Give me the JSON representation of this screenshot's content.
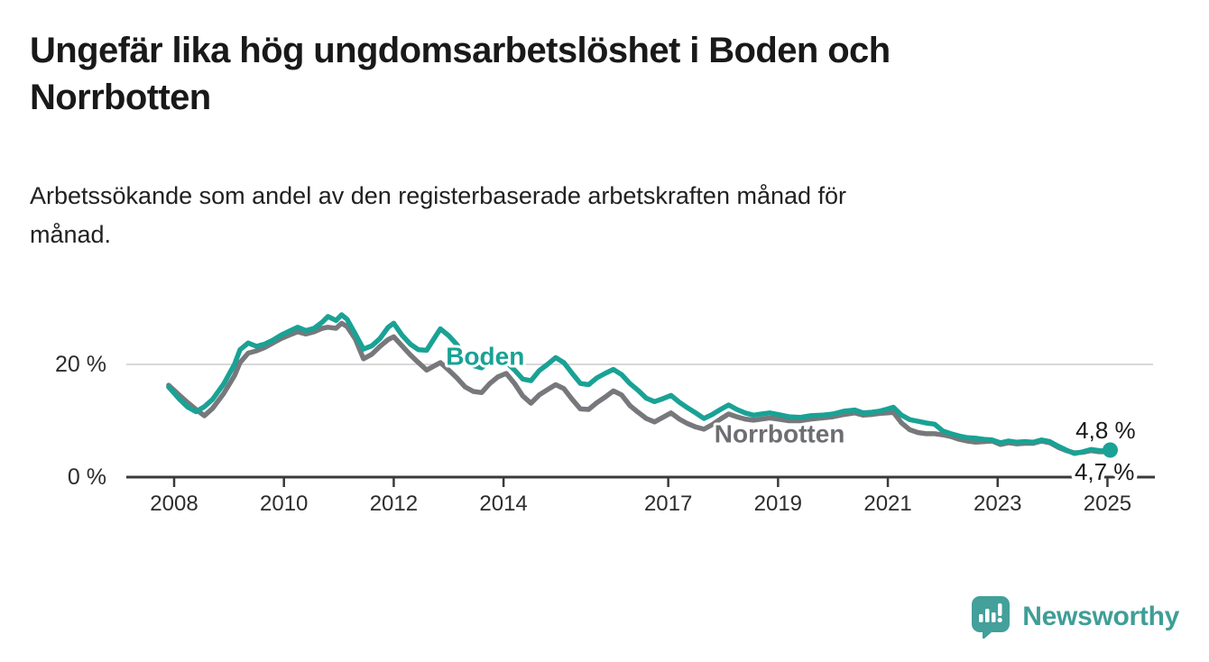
{
  "header": {
    "title": "Ungefär lika hög ungdomsarbetslöshet i Boden och\nNorrbotten",
    "subtitle": "Arbetssökande som andel av den registerbaserade arbetskraften månad för\nmånad."
  },
  "footer": {
    "brand": "Newsworthy"
  },
  "colors": {
    "accent_teal": "#19a295",
    "line_gray": "#77787b",
    "label_gray": "#6d6e71",
    "axis": "#3a3a3a",
    "grid": "#d8d8d8",
    "tick_text": "#2d2d2d",
    "value_text": "#1a1a1a",
    "logo_teal": "#43a09a"
  },
  "chart_data": {
    "type": "line",
    "title": "Ungefär lika hög ungdomsarbetslöshet i Boden och Norrbotten",
    "subtitle": "Arbetssökande som andel av den registerbaserade arbetskraften månad för månad.",
    "unit": "%",
    "grid": "y-only",
    "legend_position": "inline-labels",
    "x_axis": {
      "range": [
        2007.85,
        2025.45
      ],
      "ticks": [
        {
          "x": 2008,
          "label": "2008"
        },
        {
          "x": 2010,
          "label": "2010"
        },
        {
          "x": 2012,
          "label": "2012"
        },
        {
          "x": 2014,
          "label": "2014"
        },
        {
          "x": 2017,
          "label": "2017"
        },
        {
          "x": 2019,
          "label": "2019"
        },
        {
          "x": 2021,
          "label": "2021"
        },
        {
          "x": 2023,
          "label": "2023"
        },
        {
          "x": 2025,
          "label": "2025"
        }
      ]
    },
    "y_axis": {
      "range": [
        0,
        30
      ],
      "ticks": [
        {
          "y": 20,
          "label": "20 %"
        },
        {
          "y": 0,
          "label": "0 %"
        }
      ]
    },
    "series": [
      {
        "name": "Norrbotten",
        "color": "#77787b",
        "label": {
          "text": "Norrbotten",
          "x": 2017.84,
          "y": 6.2,
          "color": "#6d6e71"
        },
        "end_value": 4.7,
        "end_dot": false,
        "points": [
          [
            2007.9,
            16.3
          ],
          [
            2008.1,
            14.5
          ],
          [
            2008.25,
            13.2
          ],
          [
            2008.4,
            12.0
          ],
          [
            2008.55,
            10.9
          ],
          [
            2008.7,
            12.2
          ],
          [
            2008.9,
            14.8
          ],
          [
            2009.1,
            18.0
          ],
          [
            2009.2,
            20.3
          ],
          [
            2009.35,
            22.0
          ],
          [
            2009.5,
            22.4
          ],
          [
            2009.65,
            23.0
          ],
          [
            2009.8,
            23.8
          ],
          [
            2009.95,
            24.6
          ],
          [
            2010.1,
            25.2
          ],
          [
            2010.25,
            25.8
          ],
          [
            2010.4,
            25.4
          ],
          [
            2010.55,
            25.8
          ],
          [
            2010.7,
            26.4
          ],
          [
            2010.8,
            26.6
          ],
          [
            2010.95,
            26.4
          ],
          [
            2011.05,
            27.3
          ],
          [
            2011.15,
            26.7
          ],
          [
            2011.3,
            24.5
          ],
          [
            2011.45,
            21.0
          ],
          [
            2011.6,
            21.8
          ],
          [
            2011.75,
            23.2
          ],
          [
            2011.9,
            24.4
          ],
          [
            2012.0,
            24.9
          ],
          [
            2012.15,
            23.3
          ],
          [
            2012.3,
            21.7
          ],
          [
            2012.45,
            20.3
          ],
          [
            2012.6,
            19.0
          ],
          [
            2012.75,
            19.8
          ],
          [
            2012.85,
            20.3
          ],
          [
            2013.0,
            19.0
          ],
          [
            2013.15,
            17.6
          ],
          [
            2013.3,
            16.0
          ],
          [
            2013.45,
            15.2
          ],
          [
            2013.6,
            15.0
          ],
          [
            2013.75,
            16.6
          ],
          [
            2013.9,
            17.8
          ],
          [
            2014.05,
            18.4
          ],
          [
            2014.2,
            16.6
          ],
          [
            2014.35,
            14.4
          ],
          [
            2014.5,
            13.1
          ],
          [
            2014.65,
            14.6
          ],
          [
            2014.8,
            15.5
          ],
          [
            2014.95,
            16.4
          ],
          [
            2015.1,
            15.7
          ],
          [
            2015.25,
            13.8
          ],
          [
            2015.4,
            12.1
          ],
          [
            2015.55,
            12.0
          ],
          [
            2015.7,
            13.2
          ],
          [
            2015.85,
            14.2
          ],
          [
            2016.0,
            15.3
          ],
          [
            2016.15,
            14.6
          ],
          [
            2016.3,
            12.7
          ],
          [
            2016.45,
            11.5
          ],
          [
            2016.6,
            10.4
          ],
          [
            2016.75,
            9.8
          ],
          [
            2016.9,
            10.6
          ],
          [
            2017.05,
            11.4
          ],
          [
            2017.2,
            10.3
          ],
          [
            2017.35,
            9.5
          ],
          [
            2017.5,
            8.9
          ],
          [
            2017.65,
            8.5
          ],
          [
            2017.8,
            9.3
          ],
          [
            2017.95,
            10.3
          ],
          [
            2018.1,
            11.2
          ],
          [
            2018.25,
            10.7
          ],
          [
            2018.4,
            10.3
          ],
          [
            2018.55,
            10.1
          ],
          [
            2018.7,
            10.3
          ],
          [
            2018.85,
            10.5
          ],
          [
            2019.0,
            10.3
          ],
          [
            2019.2,
            10.0
          ],
          [
            2019.4,
            10.0
          ],
          [
            2019.6,
            10.3
          ],
          [
            2019.8,
            10.5
          ],
          [
            2020.0,
            10.7
          ],
          [
            2020.2,
            11.1
          ],
          [
            2020.4,
            11.4
          ],
          [
            2020.55,
            11.0
          ],
          [
            2020.7,
            11.1
          ],
          [
            2020.85,
            11.3
          ],
          [
            2021.0,
            11.4
          ],
          [
            2021.1,
            11.5
          ],
          [
            2021.25,
            9.6
          ],
          [
            2021.4,
            8.4
          ],
          [
            2021.55,
            7.9
          ],
          [
            2021.7,
            7.7
          ],
          [
            2021.85,
            7.7
          ],
          [
            2022.0,
            7.5
          ],
          [
            2022.15,
            7.2
          ],
          [
            2022.3,
            6.7
          ],
          [
            2022.45,
            6.4
          ],
          [
            2022.6,
            6.2
          ],
          [
            2022.75,
            6.3
          ],
          [
            2022.9,
            6.4
          ],
          [
            2023.05,
            5.8
          ],
          [
            2023.2,
            6.1
          ],
          [
            2023.35,
            5.9
          ],
          [
            2023.5,
            6.0
          ],
          [
            2023.65,
            6.0
          ],
          [
            2023.8,
            6.4
          ],
          [
            2023.95,
            6.1
          ],
          [
            2024.1,
            5.3
          ],
          [
            2024.25,
            4.7
          ],
          [
            2024.4,
            4.3
          ],
          [
            2024.55,
            4.4
          ],
          [
            2024.7,
            4.7
          ],
          [
            2024.85,
            4.5
          ],
          [
            2025.0,
            4.5
          ],
          [
            2025.05,
            4.7
          ]
        ]
      },
      {
        "name": "Boden",
        "color": "#19a295",
        "label": {
          "text": "Boden",
          "x": 2012.95,
          "y": 19.9,
          "color": "#19a295"
        },
        "end_value": 4.8,
        "end_dot": true,
        "points": [
          [
            2007.9,
            16.0
          ],
          [
            2008.1,
            13.8
          ],
          [
            2008.25,
            12.4
          ],
          [
            2008.4,
            11.6
          ],
          [
            2008.55,
            12.5
          ],
          [
            2008.7,
            13.8
          ],
          [
            2008.9,
            16.5
          ],
          [
            2009.1,
            20.0
          ],
          [
            2009.2,
            22.6
          ],
          [
            2009.35,
            23.8
          ],
          [
            2009.5,
            23.2
          ],
          [
            2009.65,
            23.6
          ],
          [
            2009.8,
            24.3
          ],
          [
            2009.95,
            25.2
          ],
          [
            2010.1,
            25.9
          ],
          [
            2010.25,
            26.6
          ],
          [
            2010.4,
            26.0
          ],
          [
            2010.55,
            26.4
          ],
          [
            2010.7,
            27.5
          ],
          [
            2010.8,
            28.5
          ],
          [
            2010.95,
            27.8
          ],
          [
            2011.05,
            28.8
          ],
          [
            2011.15,
            28.0
          ],
          [
            2011.3,
            25.4
          ],
          [
            2011.45,
            22.7
          ],
          [
            2011.6,
            23.3
          ],
          [
            2011.75,
            24.6
          ],
          [
            2011.9,
            26.6
          ],
          [
            2012.0,
            27.3
          ],
          [
            2012.15,
            25.2
          ],
          [
            2012.3,
            23.6
          ],
          [
            2012.45,
            22.6
          ],
          [
            2012.6,
            22.5
          ],
          [
            2012.75,
            24.8
          ],
          [
            2012.85,
            26.3
          ],
          [
            2013.0,
            25.1
          ],
          [
            2013.15,
            23.5
          ],
          [
            2013.3,
            21.2
          ],
          [
            2013.45,
            19.8
          ],
          [
            2013.6,
            19.4
          ],
          [
            2013.75,
            20.6
          ],
          [
            2013.9,
            21.2
          ],
          [
            2014.05,
            20.4
          ],
          [
            2014.2,
            19.0
          ],
          [
            2014.35,
            17.4
          ],
          [
            2014.5,
            17.1
          ],
          [
            2014.65,
            18.9
          ],
          [
            2014.8,
            20.0
          ],
          [
            2014.95,
            21.2
          ],
          [
            2015.1,
            20.3
          ],
          [
            2015.25,
            18.4
          ],
          [
            2015.4,
            16.6
          ],
          [
            2015.55,
            16.4
          ],
          [
            2015.7,
            17.6
          ],
          [
            2015.85,
            18.4
          ],
          [
            2016.0,
            19.1
          ],
          [
            2016.15,
            18.2
          ],
          [
            2016.3,
            16.6
          ],
          [
            2016.45,
            15.4
          ],
          [
            2016.6,
            14.0
          ],
          [
            2016.75,
            13.4
          ],
          [
            2016.9,
            13.9
          ],
          [
            2017.05,
            14.5
          ],
          [
            2017.2,
            13.3
          ],
          [
            2017.35,
            12.3
          ],
          [
            2017.5,
            11.4
          ],
          [
            2017.65,
            10.4
          ],
          [
            2017.8,
            11.1
          ],
          [
            2017.95,
            12.0
          ],
          [
            2018.1,
            12.8
          ],
          [
            2018.25,
            12.0
          ],
          [
            2018.4,
            11.4
          ],
          [
            2018.55,
            11.0
          ],
          [
            2018.7,
            11.2
          ],
          [
            2018.85,
            11.4
          ],
          [
            2019.0,
            11.1
          ],
          [
            2019.2,
            10.7
          ],
          [
            2019.4,
            10.6
          ],
          [
            2019.6,
            10.9
          ],
          [
            2019.8,
            11.0
          ],
          [
            2020.0,
            11.2
          ],
          [
            2020.2,
            11.7
          ],
          [
            2020.4,
            11.9
          ],
          [
            2020.55,
            11.4
          ],
          [
            2020.7,
            11.5
          ],
          [
            2020.85,
            11.7
          ],
          [
            2021.0,
            12.1
          ],
          [
            2021.1,
            12.4
          ],
          [
            2021.25,
            11.0
          ],
          [
            2021.4,
            10.2
          ],
          [
            2021.55,
            9.9
          ],
          [
            2021.7,
            9.6
          ],
          [
            2021.85,
            9.4
          ],
          [
            2022.0,
            8.2
          ],
          [
            2022.15,
            7.7
          ],
          [
            2022.3,
            7.3
          ],
          [
            2022.45,
            7.0
          ],
          [
            2022.6,
            6.9
          ],
          [
            2022.75,
            6.7
          ],
          [
            2022.9,
            6.6
          ],
          [
            2023.05,
            6.1
          ],
          [
            2023.2,
            6.4
          ],
          [
            2023.35,
            6.2
          ],
          [
            2023.5,
            6.3
          ],
          [
            2023.65,
            6.2
          ],
          [
            2023.8,
            6.6
          ],
          [
            2023.95,
            6.3
          ],
          [
            2024.1,
            5.5
          ],
          [
            2024.25,
            4.8
          ],
          [
            2024.4,
            4.2
          ],
          [
            2024.55,
            4.5
          ],
          [
            2024.7,
            4.9
          ],
          [
            2024.85,
            4.7
          ],
          [
            2025.0,
            4.6
          ],
          [
            2025.05,
            4.8
          ]
        ]
      }
    ],
    "value_labels": [
      {
        "text": "4,8 %",
        "x": 2024.42,
        "y": 6.9
      },
      {
        "text": "4,7 %",
        "x": 2024.4,
        "y": -0.5
      }
    ]
  }
}
